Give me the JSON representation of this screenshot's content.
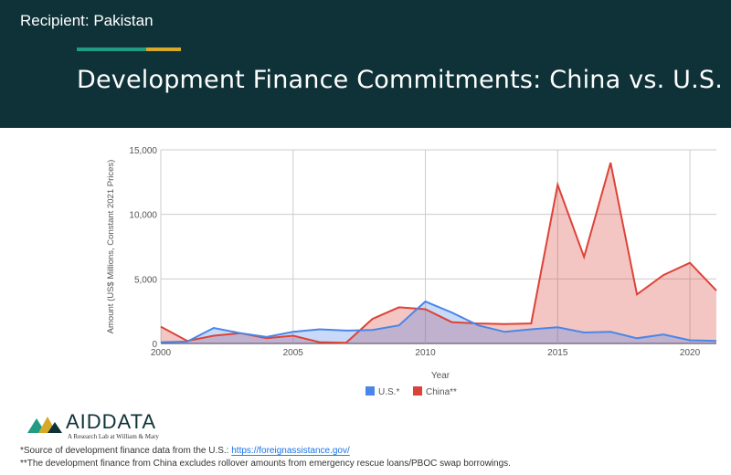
{
  "header": {
    "recipient": "Recipient: Pakistan",
    "title": "Development Finance Commitments: China vs. U.S."
  },
  "colors": {
    "header_bg": "#0f3238",
    "accent_green": "#1f9c86",
    "accent_yellow": "#d7a929",
    "us": "#4a86e8",
    "china": "#dc4338"
  },
  "chart_data": {
    "type": "area",
    "x": [
      2000,
      2001,
      2002,
      2003,
      2004,
      2005,
      2006,
      2007,
      2008,
      2009,
      2010,
      2011,
      2012,
      2013,
      2014,
      2015,
      2016,
      2017,
      2018,
      2019,
      2020,
      2021
    ],
    "series": [
      {
        "name": "U.S.*",
        "color": "#4a86e8",
        "values": [
          100,
          150,
          1200,
          800,
          500,
          900,
          1100,
          1000,
          1050,
          1400,
          3250,
          2400,
          1400,
          900,
          1100,
          1250,
          850,
          900,
          400,
          700,
          250,
          200
        ]
      },
      {
        "name": "China**",
        "color": "#dc4338",
        "values": [
          1300,
          200,
          600,
          800,
          400,
          600,
          100,
          50,
          1900,
          2800,
          2650,
          1650,
          1550,
          1500,
          1550,
          12300,
          6700,
          14000,
          3800,
          5300,
          6250,
          4100
        ]
      }
    ],
    "xlabel": "Year",
    "ylabel": "Amount (US$ Millions, Constant 2021 Prices)",
    "xticks": [
      2000,
      2005,
      2010,
      2015,
      2020
    ],
    "yticks": [
      0,
      5000,
      10000,
      15000
    ],
    "ytick_labels": [
      "0",
      "5,000",
      "10,000",
      "15,000"
    ],
    "xlim": [
      2000,
      2021
    ],
    "ylim": [
      0,
      15000
    ],
    "grid": true,
    "legend_position": "bottom"
  },
  "logo": {
    "word": "AIDDATA",
    "tagline": "A Research Lab at William & Mary"
  },
  "footnotes": {
    "fn1_text": "*Source of development finance data from the U.S.: ",
    "fn1_link": "https://foreignassistance.gov/",
    "fn2_text": "**The development finance from China excludes rollover amounts from emergency rescue loans/PBOC swap borrowings."
  }
}
